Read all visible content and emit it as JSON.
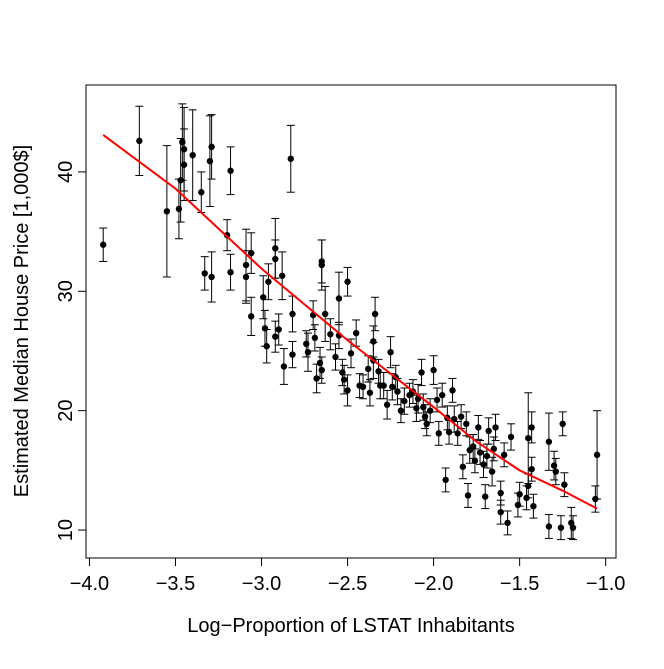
{
  "chart_data": {
    "type": "scatter",
    "x_label": "Log−Proportion of LSTAT Inhabitants",
    "y_label": "Estimated Median House Price [1,000$]",
    "xlim": [
      -4.02,
      -0.94
    ],
    "ylim": [
      7.66,
      47.28
    ],
    "xticks": [
      {
        "value": -4.0,
        "label": "−4.0"
      },
      {
        "value": -3.5,
        "label": "−3.5"
      },
      {
        "value": -3.0,
        "label": "−3.0"
      },
      {
        "value": -2.5,
        "label": "−2.5"
      },
      {
        "value": -2.0,
        "label": "−2.0"
      },
      {
        "value": -1.5,
        "label": "−1.5"
      },
      {
        "value": -1.0,
        "label": "−1.0"
      }
    ],
    "yticks": [
      10,
      20,
      30,
      40
    ],
    "series": [
      {
        "type": "scatter",
        "color": "#000000",
        "x": [
          -3.92,
          -3.71,
          -3.55,
          -3.48,
          -3.47,
          -3.46,
          -3.45,
          -3.45,
          -3.4,
          -3.35,
          -3.3,
          -3.29,
          -3.33,
          -3.29,
          -3.2,
          -3.18,
          -3.18,
          -3.09,
          -3.09,
          -3.06,
          -3.06,
          -2.99,
          -2.98,
          -2.97,
          -2.96,
          -2.92,
          -2.92,
          -2.9,
          -2.92,
          -2.88,
          -2.87,
          -2.83,
          -2.82,
          -2.82,
          -2.74,
          -2.73,
          -2.7,
          -2.69,
          -2.68,
          -2.66,
          -2.65,
          -2.65,
          -2.65,
          -2.63,
          -2.6,
          -2.57,
          -2.55,
          -2.55,
          -2.53,
          -2.52,
          -2.5,
          -2.5,
          -2.48,
          -2.45,
          -2.43,
          -2.41,
          -2.38,
          -2.37,
          -2.35,
          -2.35,
          -2.34,
          -2.32,
          -2.31,
          -2.29,
          -2.27,
          -2.25,
          -2.24,
          -2.22,
          -2.21,
          -2.19,
          -2.17,
          -2.14,
          -2.12,
          -2.1,
          -2.09,
          -2.07,
          -2.06,
          -2.05,
          -2.04,
          -2.02,
          -2.0,
          -1.98,
          -1.97,
          -1.95,
          -1.93,
          -1.92,
          -1.91,
          -1.89,
          -1.88,
          -1.86,
          -1.84,
          -1.83,
          -1.81,
          -1.8,
          -1.79,
          -1.77,
          -1.76,
          -1.74,
          -1.73,
          -1.71,
          -1.7,
          -1.69,
          -1.68,
          -1.66,
          -1.65,
          -1.64,
          -1.61,
          -1.61,
          -1.59,
          -1.57,
          -1.55,
          -1.51,
          -1.5,
          -1.46,
          -1.45,
          -1.45,
          -1.43,
          -1.43,
          -1.42,
          -1.33,
          -1.33,
          -1.3,
          -1.29,
          -1.26,
          -1.25,
          -1.24,
          -1.2,
          -1.19,
          -1.06,
          -1.05
        ],
        "values": [
          33.9,
          42.6,
          36.7,
          36.9,
          39.3,
          42.5,
          41.9,
          40.6,
          41.4,
          38.3,
          40.9,
          42.1,
          31.5,
          31.2,
          34.7,
          40.1,
          31.6,
          32.2,
          31.2,
          33.2,
          27.9,
          29.5,
          26.9,
          25.4,
          30.8,
          33.6,
          32.7,
          26.8,
          26.2,
          31.3,
          23.7,
          41.1,
          28.1,
          24.7,
          25.6,
          24.9,
          28.0,
          26.1,
          22.7,
          24.0,
          23.4,
          32.2,
          32.5,
          28.1,
          26.4,
          24.5,
          29.4,
          26.3,
          23.2,
          22.6,
          30.8,
          21.7,
          24.8,
          26.5,
          22.1,
          22.0,
          23.5,
          21.5,
          24.2,
          25.8,
          28.1,
          23.3,
          22.1,
          22.1,
          20.5,
          24.9,
          22.0,
          22.8,
          21.6,
          20.0,
          20.8,
          21.3,
          21.6,
          20.2,
          21.0,
          23.2,
          20.3,
          19.5,
          18.9,
          20.0,
          23.4,
          20.9,
          18.1,
          21.3,
          14.2,
          19.4,
          18.2,
          21.7,
          19.3,
          18.1,
          19.5,
          15.3,
          18.9,
          12.9,
          16.7,
          17.0,
          15.8,
          18.6,
          16.5,
          15.5,
          12.8,
          16.2,
          18.3,
          14.9,
          16.8,
          18.6,
          13.1,
          11.5,
          16.3,
          10.6,
          17.8,
          12.1,
          13.0,
          12.7,
          13.7,
          17.7,
          18.6,
          15.1,
          12.0,
          17.4,
          10.3,
          15.4,
          14.9,
          10.2,
          18.9,
          13.8,
          10.6,
          10.2,
          12.6,
          16.3
        ],
        "errors": [
          1.4,
          2.9,
          5.5,
          2.5,
          3.5,
          3.2,
          3.5,
          3.0,
          3.8,
          1.7,
          3.8,
          2.7,
          1.4,
          2.1,
          1.3,
          2.0,
          1.5,
          3.0,
          2.2,
          1.7,
          1.6,
          1.8,
          1.5,
          1.4,
          1.5,
          2.5,
          1.6,
          1.3,
          1.3,
          2.0,
          1.5,
          2.8,
          1.5,
          1.1,
          1.1,
          1.6,
          1.2,
          1.1,
          1.2,
          1.3,
          1.1,
          2.1,
          1.8,
          2.3,
          1.3,
          1.1,
          2.2,
          1.1,
          1.1,
          1.2,
          1.2,
          1.3,
          1.2,
          1.1,
          1.0,
          1.0,
          1.1,
          1.1,
          1.5,
          1.3,
          1.4,
          1.0,
          1.1,
          1.1,
          1.2,
          1.3,
          1.1,
          1.0,
          1.1,
          1.0,
          1.1,
          1.0,
          1.0,
          1.1,
          1.2,
          1.1,
          1.1,
          1.0,
          1.0,
          1.0,
          1.2,
          1.0,
          1.0,
          1.0,
          1.0,
          1.0,
          1.0,
          1.0,
          1.1,
          1.0,
          1.0,
          1.0,
          1.0,
          1.0,
          1.1,
          1.0,
          1.0,
          1.0,
          1.0,
          1.1,
          1.0,
          1.0,
          1.1,
          1.2,
          1.0,
          1.1,
          1.0,
          1.0,
          1.0,
          1.0,
          1.1,
          1.0,
          1.0,
          1.0,
          1.0,
          3.8,
          1.3,
          1.0,
          1.0,
          2.4,
          1.0,
          1.2,
          1.1,
          1.0,
          1.0,
          1.0,
          1.3,
          1.0,
          1.1,
          3.7
        ]
      },
      {
        "type": "line",
        "color": "#ff0000",
        "x": [
          -3.92,
          -3.5,
          -3.0,
          -2.5,
          -2.0,
          -1.75,
          -1.5,
          -1.25,
          -1.05
        ],
        "values": [
          43.1,
          38.6,
          31.9,
          25.9,
          20.3,
          17.4,
          15.0,
          13.3,
          11.8
        ]
      }
    ]
  }
}
